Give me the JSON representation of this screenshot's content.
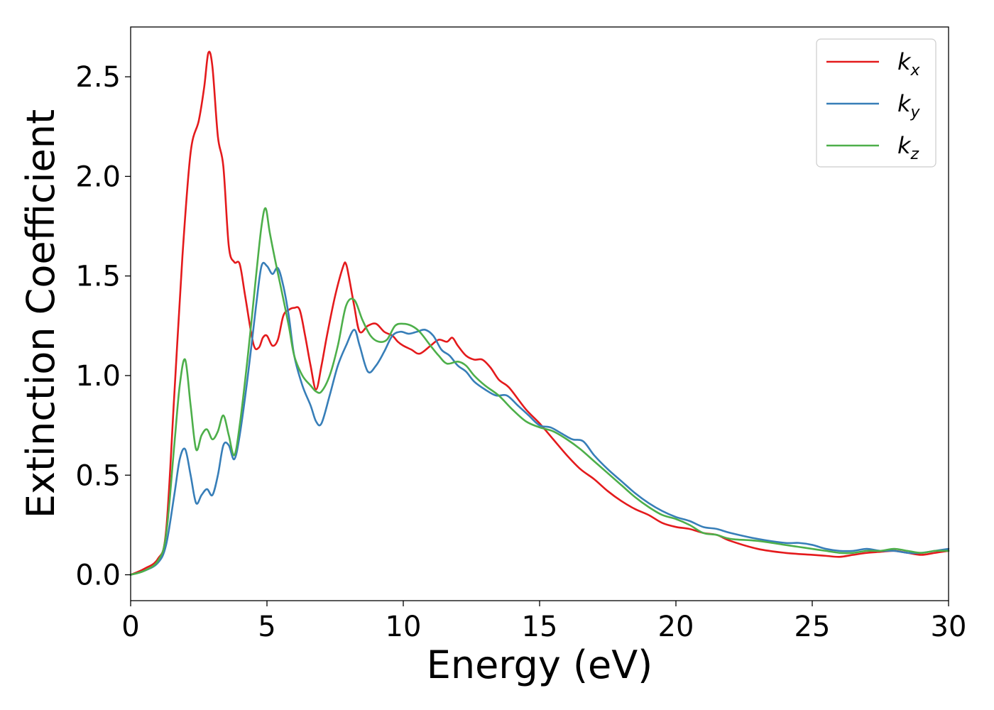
{
  "chart_data": {
    "type": "line",
    "title": "",
    "xlabel": "Energy (eV)",
    "ylabel": "Extinction Coefficient",
    "xlim": [
      0,
      30
    ],
    "ylim": [
      -0.13,
      2.75
    ],
    "xticks": [
      0,
      5,
      10,
      15,
      20,
      25,
      30
    ],
    "xtick_labels": [
      "0",
      "5",
      "10",
      "15",
      "20",
      "25",
      "30"
    ],
    "yticks": [
      0.0,
      0.5,
      1.0,
      1.5,
      2.0,
      2.5
    ],
    "ytick_labels": [
      "0.0",
      "0.5",
      "1.0",
      "1.5",
      "2.0",
      "2.5"
    ],
    "grid": false,
    "legend_position": "top-right",
    "series": [
      {
        "name": "k_x",
        "legend_main": "k",
        "legend_sub": "x",
        "color": "#e41a1c",
        "x": [
          0,
          0.5,
          1.0,
          1.3,
          1.6,
          1.9,
          2.2,
          2.5,
          2.7,
          2.85,
          3.0,
          3.2,
          3.4,
          3.6,
          3.8,
          4.0,
          4.2,
          4.5,
          4.7,
          4.85,
          5.0,
          5.2,
          5.4,
          5.6,
          5.8,
          6.0,
          6.2,
          6.4,
          6.6,
          6.8,
          7.0,
          7.2,
          7.5,
          7.8,
          7.9,
          8.0,
          8.2,
          8.4,
          8.7,
          9.0,
          9.3,
          9.6,
          9.8,
          10.0,
          10.3,
          10.6,
          11.0,
          11.3,
          11.6,
          11.8,
          12.0,
          12.3,
          12.6,
          12.9,
          13.2,
          13.5,
          13.8,
          14.0,
          14.5,
          15.0,
          15.5,
          16.0,
          16.5,
          17.0,
          17.5,
          18.0,
          18.5,
          19.0,
          19.5,
          20.0,
          20.5,
          21.0,
          21.5,
          22.0,
          23.0,
          24.0,
          25.0,
          25.5,
          26.0,
          26.5,
          27.0,
          27.5,
          28.0,
          28.5,
          29.0,
          29.5,
          30.0
        ],
        "y": [
          0.0,
          0.03,
          0.08,
          0.22,
          0.9,
          1.6,
          2.12,
          2.28,
          2.45,
          2.62,
          2.55,
          2.2,
          2.05,
          1.65,
          1.57,
          1.56,
          1.4,
          1.16,
          1.14,
          1.19,
          1.2,
          1.15,
          1.18,
          1.3,
          1.33,
          1.34,
          1.33,
          1.2,
          1.05,
          0.93,
          1.05,
          1.2,
          1.4,
          1.55,
          1.56,
          1.5,
          1.35,
          1.22,
          1.25,
          1.26,
          1.22,
          1.2,
          1.17,
          1.15,
          1.13,
          1.11,
          1.15,
          1.18,
          1.17,
          1.19,
          1.15,
          1.1,
          1.08,
          1.08,
          1.04,
          0.98,
          0.95,
          0.92,
          0.83,
          0.76,
          0.68,
          0.6,
          0.53,
          0.48,
          0.42,
          0.37,
          0.33,
          0.3,
          0.26,
          0.24,
          0.23,
          0.21,
          0.2,
          0.17,
          0.13,
          0.11,
          0.1,
          0.095,
          0.09,
          0.1,
          0.11,
          0.115,
          0.12,
          0.11,
          0.1,
          0.11,
          0.12
        ]
      },
      {
        "name": "k_y",
        "legend_main": "k",
        "legend_sub": "y",
        "color": "#377eb8",
        "x": [
          0,
          0.5,
          1.0,
          1.3,
          1.6,
          1.8,
          2.0,
          2.2,
          2.4,
          2.6,
          2.8,
          3.0,
          3.2,
          3.4,
          3.6,
          3.8,
          4.0,
          4.3,
          4.6,
          4.8,
          5.0,
          5.2,
          5.4,
          5.6,
          5.8,
          6.0,
          6.3,
          6.6,
          6.8,
          7.0,
          7.3,
          7.6,
          7.9,
          8.2,
          8.4,
          8.7,
          9.0,
          9.3,
          9.6,
          9.9,
          10.2,
          10.5,
          10.8,
          11.1,
          11.4,
          11.7,
          12.0,
          12.3,
          12.6,
          13.0,
          13.4,
          13.8,
          14.2,
          14.6,
          15.0,
          15.4,
          15.8,
          16.2,
          16.6,
          17.0,
          17.5,
          18.0,
          18.5,
          19.0,
          19.5,
          20.0,
          20.5,
          21.0,
          21.5,
          22.0,
          23.0,
          24.0,
          24.5,
          25.0,
          25.5,
          26.0,
          26.5,
          27.0,
          27.5,
          28.0,
          28.5,
          29.0,
          29.5,
          30.0
        ],
        "y": [
          0.0,
          0.02,
          0.06,
          0.15,
          0.4,
          0.58,
          0.63,
          0.5,
          0.36,
          0.4,
          0.43,
          0.4,
          0.5,
          0.65,
          0.65,
          0.58,
          0.7,
          1.0,
          1.35,
          1.55,
          1.55,
          1.51,
          1.54,
          1.45,
          1.3,
          1.1,
          0.95,
          0.85,
          0.77,
          0.76,
          0.9,
          1.05,
          1.15,
          1.23,
          1.15,
          1.02,
          1.05,
          1.12,
          1.2,
          1.22,
          1.21,
          1.22,
          1.23,
          1.2,
          1.13,
          1.1,
          1.05,
          1.02,
          0.97,
          0.93,
          0.9,
          0.9,
          0.85,
          0.8,
          0.75,
          0.74,
          0.71,
          0.68,
          0.67,
          0.6,
          0.53,
          0.47,
          0.41,
          0.36,
          0.32,
          0.29,
          0.27,
          0.24,
          0.23,
          0.21,
          0.18,
          0.16,
          0.16,
          0.15,
          0.13,
          0.12,
          0.12,
          0.13,
          0.12,
          0.12,
          0.11,
          0.11,
          0.12,
          0.13
        ]
      },
      {
        "name": "k_z",
        "legend_main": "k",
        "legend_sub": "z",
        "color": "#4daf4a",
        "x": [
          0,
          0.5,
          1.0,
          1.3,
          1.6,
          1.8,
          2.0,
          2.2,
          2.4,
          2.6,
          2.8,
          3.0,
          3.2,
          3.4,
          3.6,
          3.8,
          4.0,
          4.3,
          4.6,
          4.8,
          4.95,
          5.1,
          5.3,
          5.5,
          5.8,
          6.0,
          6.3,
          6.6,
          6.8,
          7.0,
          7.3,
          7.6,
          7.9,
          8.2,
          8.5,
          8.8,
          9.1,
          9.4,
          9.7,
          10.0,
          10.3,
          10.6,
          11.0,
          11.3,
          11.6,
          12.0,
          12.3,
          12.6,
          13.0,
          13.5,
          14.0,
          14.5,
          15.0,
          15.5,
          16.0,
          16.5,
          17.0,
          17.5,
          18.0,
          18.5,
          19.0,
          19.5,
          20.0,
          20.5,
          21.0,
          21.5,
          22.0,
          23.0,
          24.0,
          24.5,
          25.0,
          25.5,
          26.0,
          26.5,
          27.0,
          27.5,
          28.0,
          28.5,
          29.0,
          29.5,
          30.0
        ],
        "y": [
          0.0,
          0.02,
          0.07,
          0.2,
          0.65,
          0.95,
          1.08,
          0.85,
          0.63,
          0.7,
          0.73,
          0.68,
          0.72,
          0.8,
          0.7,
          0.6,
          0.75,
          1.1,
          1.5,
          1.75,
          1.84,
          1.72,
          1.58,
          1.45,
          1.25,
          1.1,
          1.0,
          0.95,
          0.92,
          0.92,
          1.0,
          1.15,
          1.35,
          1.38,
          1.28,
          1.2,
          1.17,
          1.18,
          1.25,
          1.26,
          1.25,
          1.22,
          1.15,
          1.1,
          1.06,
          1.07,
          1.05,
          1.0,
          0.95,
          0.9,
          0.83,
          0.77,
          0.74,
          0.72,
          0.68,
          0.63,
          0.57,
          0.51,
          0.45,
          0.39,
          0.34,
          0.3,
          0.28,
          0.25,
          0.21,
          0.2,
          0.18,
          0.17,
          0.15,
          0.14,
          0.13,
          0.12,
          0.11,
          0.11,
          0.12,
          0.12,
          0.13,
          0.12,
          0.11,
          0.12,
          0.12
        ]
      }
    ]
  }
}
